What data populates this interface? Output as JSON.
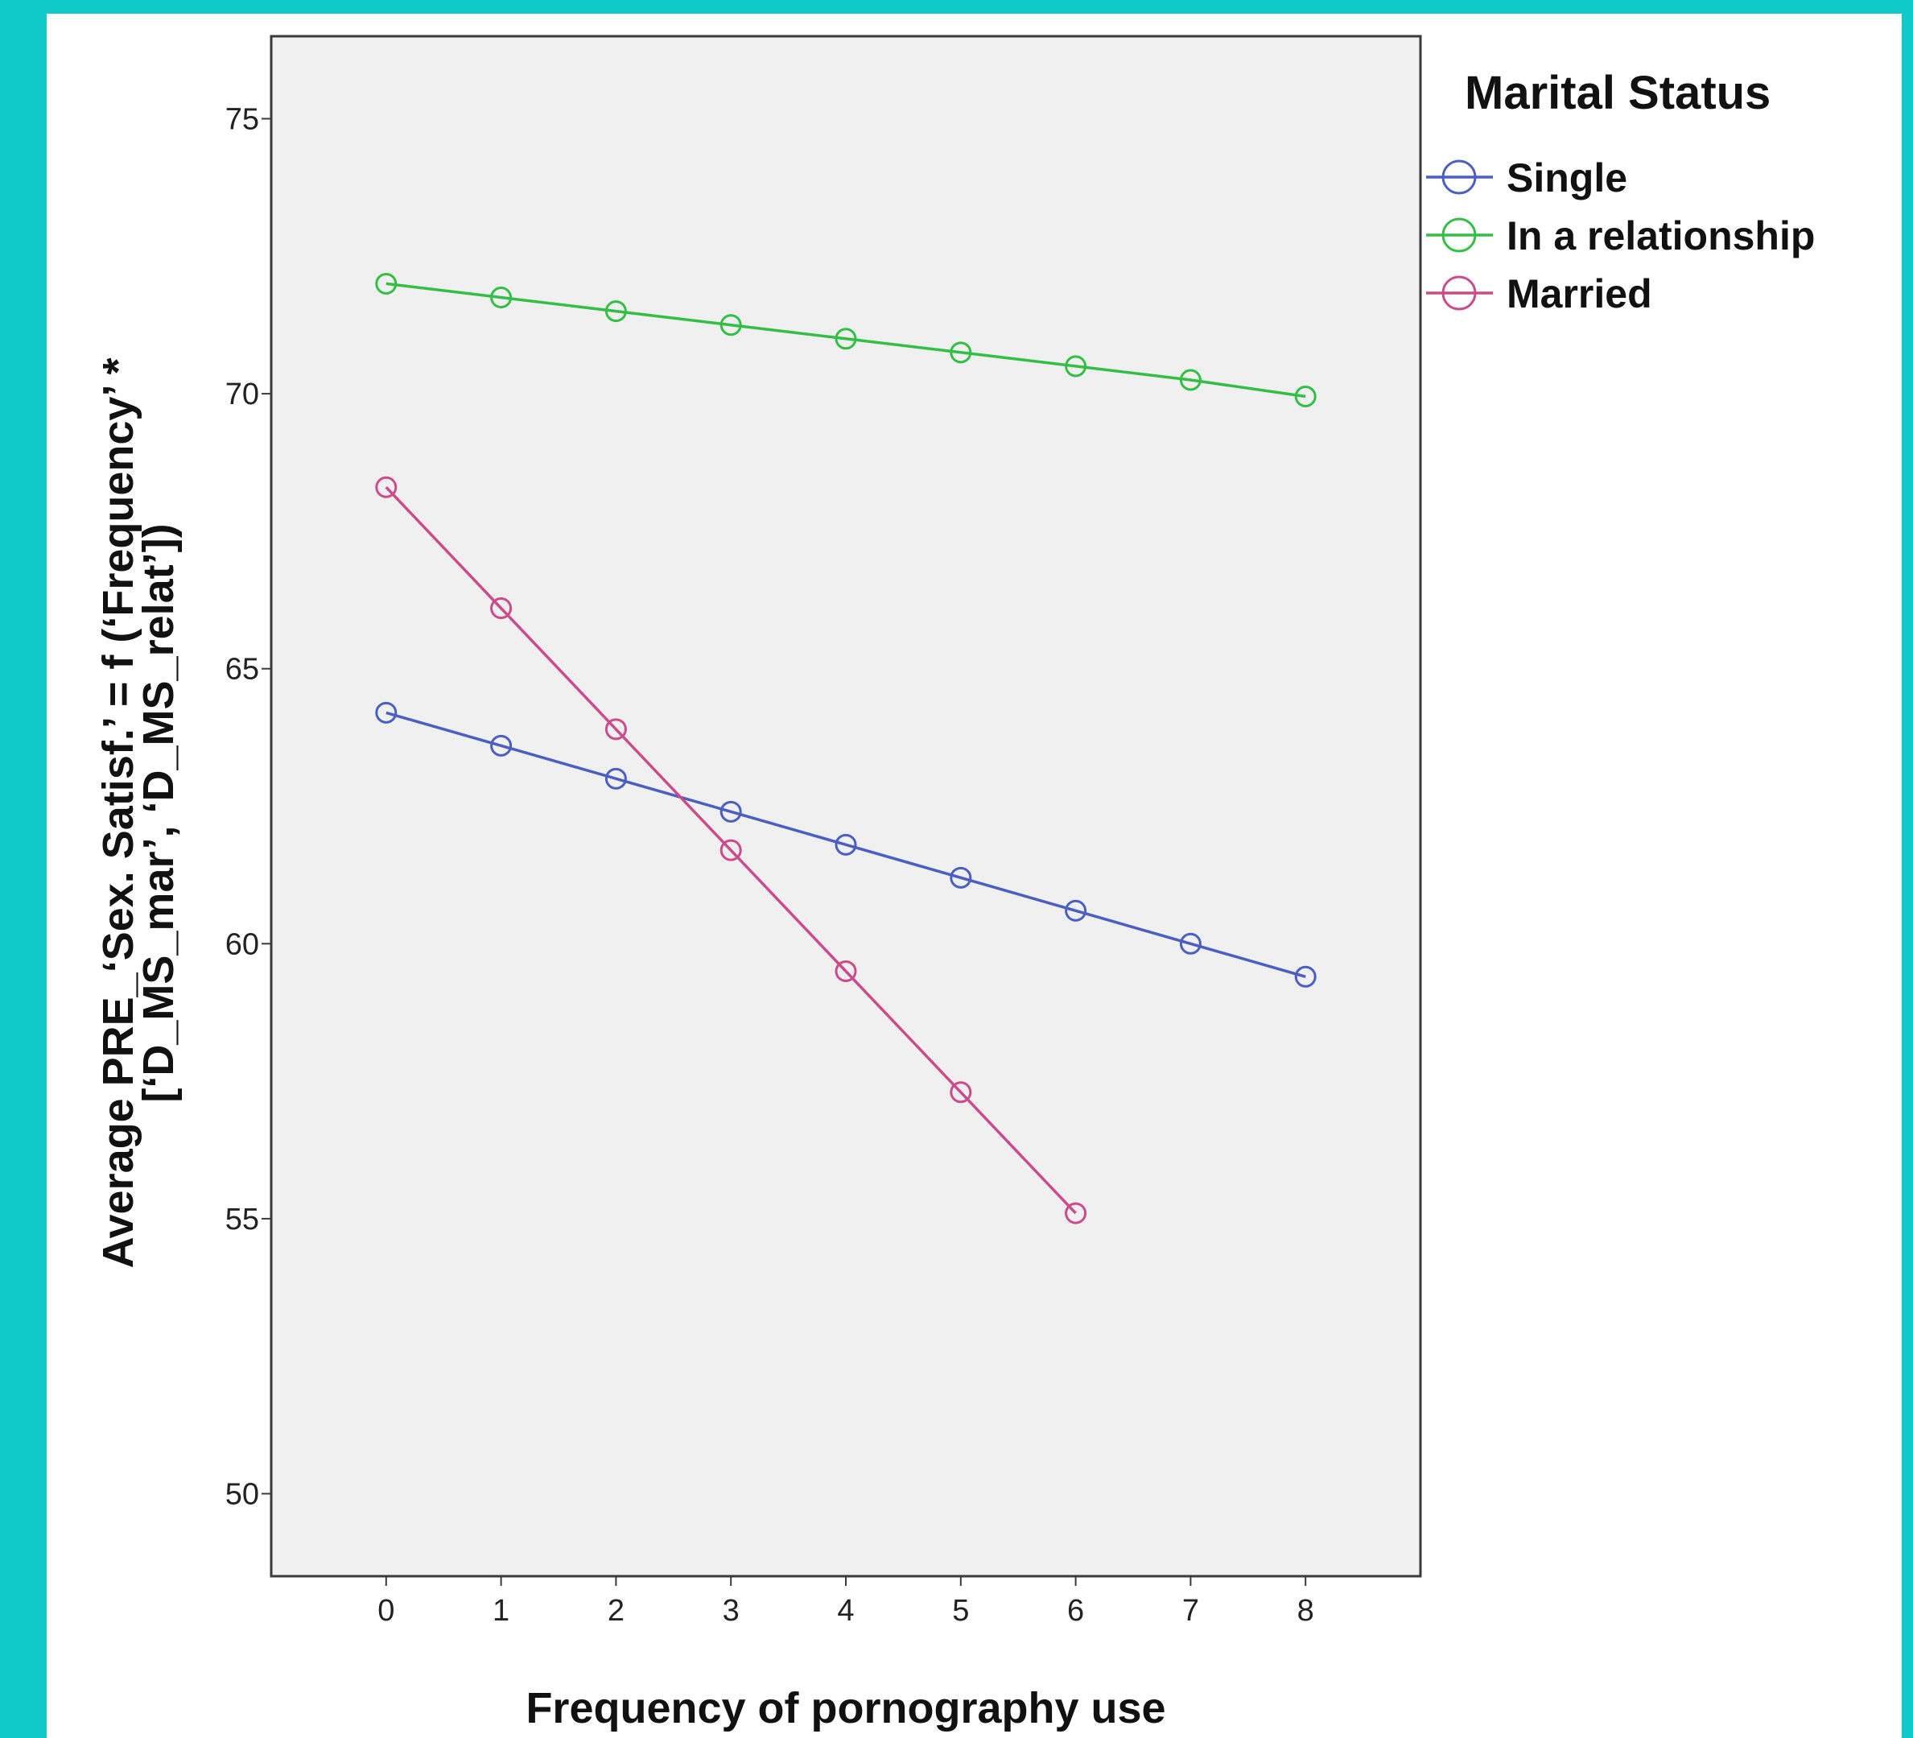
{
  "chart_data": {
    "type": "line",
    "title": "",
    "xlabel": "Frequency of pornography use",
    "ylabel_line1": "Average PRE_‘Sex. Satisf.’ = f (‘Frequency’ *",
    "ylabel_line2": "[‘D_MS_mar’, ‘D_MS_relat’])",
    "xlim": [
      -1,
      9
    ],
    "ylim": [
      48.5,
      76.5
    ],
    "x_ticks": [
      0,
      1,
      2,
      3,
      4,
      5,
      6,
      7,
      8
    ],
    "y_ticks": [
      50,
      55,
      60,
      65,
      70,
      75
    ],
    "grid": false,
    "legend": {
      "title": "Marital Status",
      "placement": "right"
    },
    "series": [
      {
        "name": "Single",
        "color": "#4a5fc1",
        "x": [
          0,
          1,
          2,
          3,
          4,
          5,
          6,
          7,
          8
        ],
        "y": [
          64.2,
          63.6,
          63.0,
          62.4,
          61.8,
          61.2,
          60.6,
          60.0,
          59.4
        ]
      },
      {
        "name": "In a relationship",
        "color": "#33bf45",
        "x": [
          0,
          1,
          2,
          3,
          4,
          5,
          6,
          7,
          8
        ],
        "y": [
          72.0,
          71.75,
          71.5,
          71.25,
          71.0,
          70.75,
          70.5,
          70.25,
          69.95
        ]
      },
      {
        "name": "Married",
        "color": "#cc4b8a",
        "x": [
          0,
          1,
          2,
          3,
          4,
          5,
          6
        ],
        "y": [
          68.3,
          66.1,
          63.9,
          61.7,
          59.5,
          57.3,
          55.1
        ]
      }
    ]
  }
}
